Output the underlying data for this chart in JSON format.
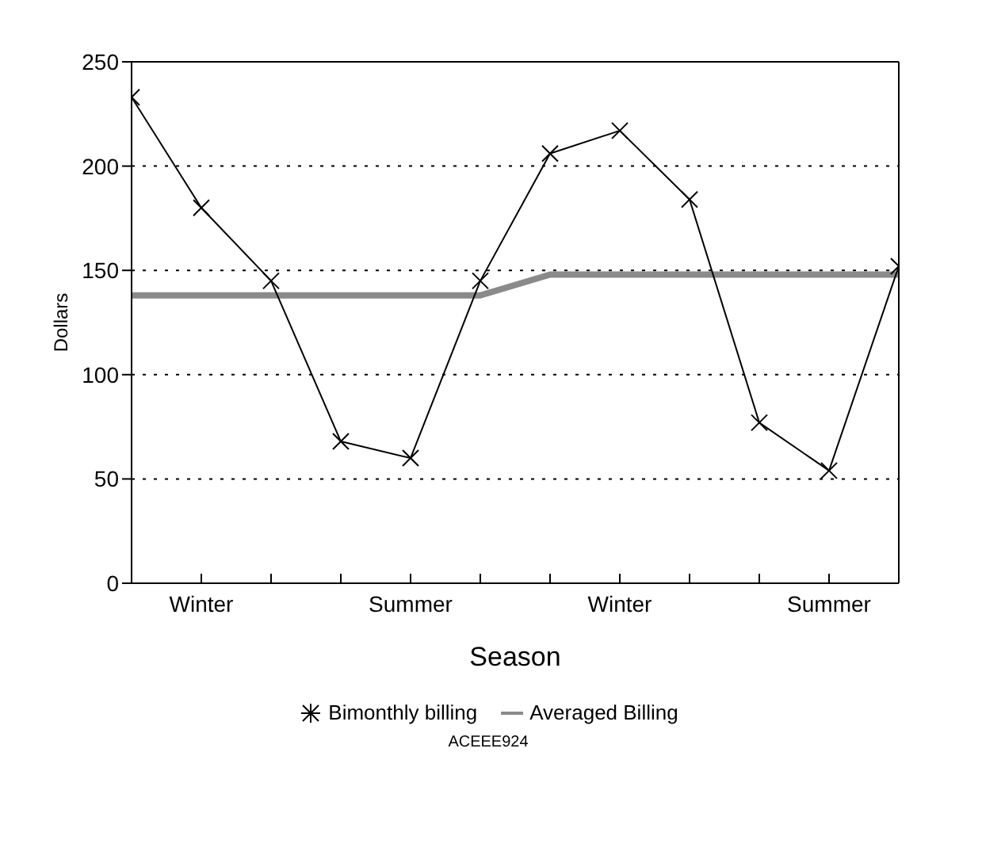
{
  "chart_data": {
    "type": "line",
    "xlabel": "Season",
    "ylabel": "Dollars",
    "categories": [
      null,
      "Winter",
      null,
      null,
      "Summer",
      null,
      null,
      "Winter",
      null,
      null,
      "Summer",
      null
    ],
    "ylim": [
      0,
      250
    ],
    "yticks": [
      0,
      50,
      100,
      150,
      200,
      250
    ],
    "grid": "y",
    "legend": "bottom",
    "line_style": "solid",
    "series": [
      {
        "name": "Bimonthly billing",
        "color": "#000000",
        "marker": "cross",
        "values": [
          233,
          180,
          145,
          68,
          60,
          145,
          206,
          217,
          184,
          77,
          54,
          152
        ]
      },
      {
        "name": "Averaged Billing",
        "color": "#8a8a8a",
        "marker": "none",
        "values": [
          138,
          138,
          138,
          138,
          138,
          138,
          148,
          148,
          148,
          148,
          148,
          148
        ]
      }
    ],
    "annotations": [
      "ACEEE924"
    ]
  }
}
